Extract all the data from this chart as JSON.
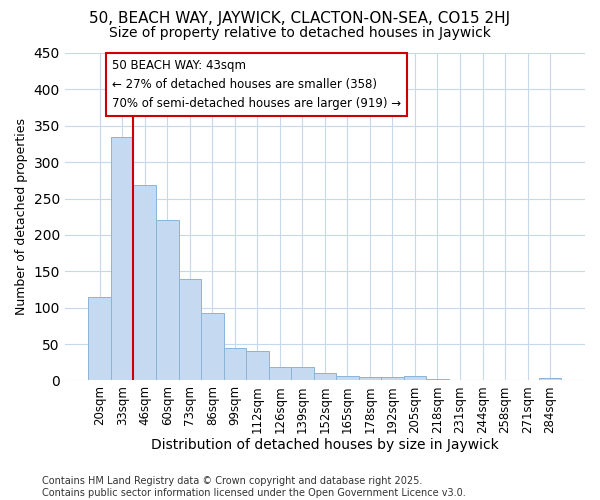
{
  "title1": "50, BEACH WAY, JAYWICK, CLACTON-ON-SEA, CO15 2HJ",
  "title2": "Size of property relative to detached houses in Jaywick",
  "xlabel": "Distribution of detached houses by size in Jaywick",
  "ylabel": "Number of detached properties",
  "categories": [
    "20sqm",
    "33sqm",
    "46sqm",
    "60sqm",
    "73sqm",
    "86sqm",
    "99sqm",
    "112sqm",
    "126sqm",
    "139sqm",
    "152sqm",
    "165sqm",
    "178sqm",
    "192sqm",
    "205sqm",
    "218sqm",
    "231sqm",
    "244sqm",
    "258sqm",
    "271sqm",
    "284sqm"
  ],
  "values": [
    115,
    335,
    268,
    220,
    140,
    93,
    45,
    40,
    18,
    18,
    10,
    6,
    5,
    5,
    6,
    2,
    0,
    0,
    0,
    0,
    3
  ],
  "bar_color": "#c5d9f0",
  "bar_edge_color": "#8ab4d8",
  "fig_facecolor": "#ffffff",
  "ax_facecolor": "#ffffff",
  "grid_color": "#c8d8ec",
  "vline_x": 2.0,
  "vline_color": "#cc0000",
  "annotation_text": "50 BEACH WAY: 43sqm\n← 27% of detached houses are smaller (358)\n70% of semi-detached houses are larger (919) →",
  "annotation_facecolor": "#ffffff",
  "annotation_edgecolor": "#cc0000",
  "footer": "Contains HM Land Registry data © Crown copyright and database right 2025.\nContains public sector information licensed under the Open Government Licence v3.0.",
  "ylim": [
    0,
    450
  ],
  "yticks": [
    0,
    50,
    100,
    150,
    200,
    250,
    300,
    350,
    400,
    450
  ],
  "title1_fontsize": 11,
  "title2_fontsize": 10,
  "ylabel_fontsize": 9,
  "xlabel_fontsize": 10,
  "tick_fontsize": 8.5,
  "annotation_fontsize": 8.5,
  "footer_fontsize": 7
}
